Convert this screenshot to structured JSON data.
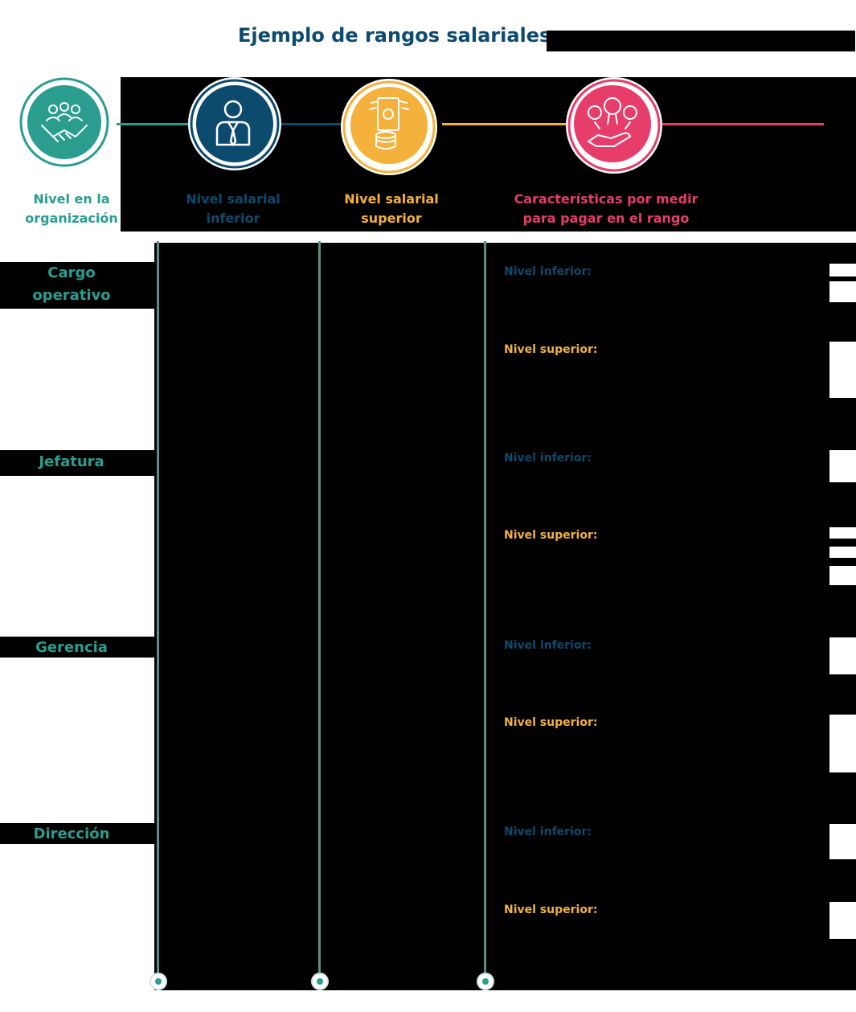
{
  "title": "Ejemplo de rangos salariales",
  "colors": {
    "teal": "#2a9d8f",
    "navy": "#0c4a6e",
    "yellow": "#f4b23c",
    "pink": "#e63d6b",
    "line": "#5b8f86"
  },
  "headers": [
    {
      "icon": "handshake-team-icon",
      "label_line1": "Nivel en la",
      "label_line2": "organización"
    },
    {
      "icon": "employee-icon",
      "label_line1": "Nivel salarial",
      "label_line2": "inferior"
    },
    {
      "icon": "money-coins-icon",
      "label_line1": "Nivel salarial",
      "label_line2": "superior"
    },
    {
      "icon": "reward-hand-icon",
      "label_line1": "Características por medir",
      "label_line2": "para pagar en el rango"
    }
  ],
  "rows": [
    {
      "label_line1": "Cargo",
      "label_line2": "operativo",
      "inferior": "Nivel inferior:",
      "superior": "Nivel superior:"
    },
    {
      "label_line1": "Jefatura",
      "label_line2": "",
      "inferior": "Nivel inferior:",
      "superior": "Nivel superior:"
    },
    {
      "label_line1": "Gerencia",
      "label_line2": "",
      "inferior": "Nivel inferior:",
      "superior": "Nivel superior:"
    },
    {
      "label_line1": "Dirección",
      "label_line2": "",
      "inferior": "Nivel inferior:",
      "superior": "Nivel superior:"
    }
  ]
}
